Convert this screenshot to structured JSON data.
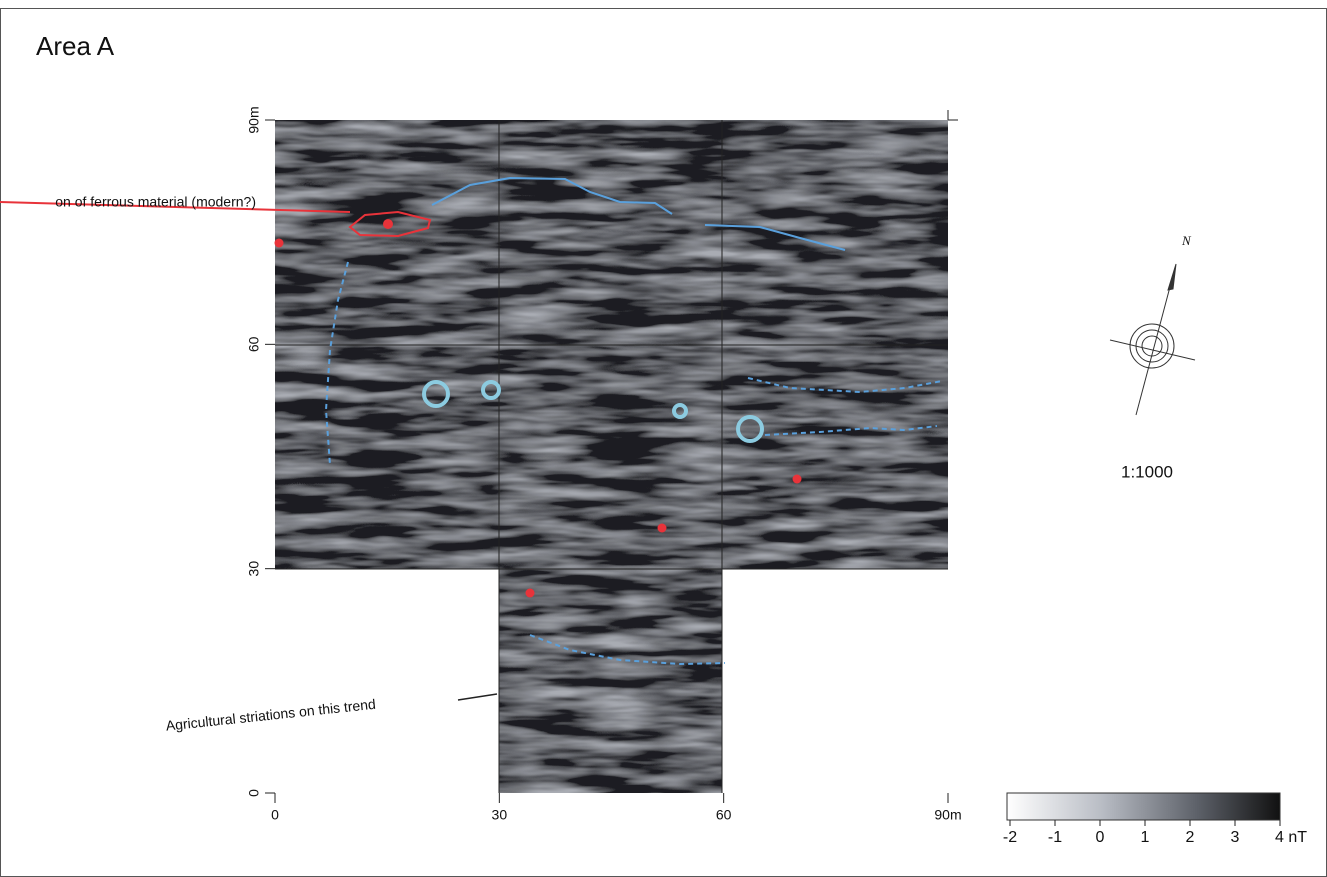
{
  "title": "Area A",
  "annotations": [
    "on of ferrous material (modern?)",
    "Agricultural striations on this trend"
  ],
  "x_axis": {
    "lim": [
      0,
      90
    ],
    "ticks": [
      0,
      30,
      60,
      {
        "value": 90,
        "label": "90m"
      }
    ]
  },
  "y_axis": {
    "lim": [
      0,
      90
    ],
    "ticks": [
      0,
      30,
      60,
      {
        "value": 90,
        "label": "90m"
      }
    ]
  },
  "north": "N",
  "scale": "1:1000",
  "colorbar": {
    "lim": [
      -2,
      4
    ],
    "ticks": [
      -2,
      -1,
      0,
      1,
      2,
      3,
      {
        "value": 4,
        "label": "4 nT"
      }
    ]
  }
}
